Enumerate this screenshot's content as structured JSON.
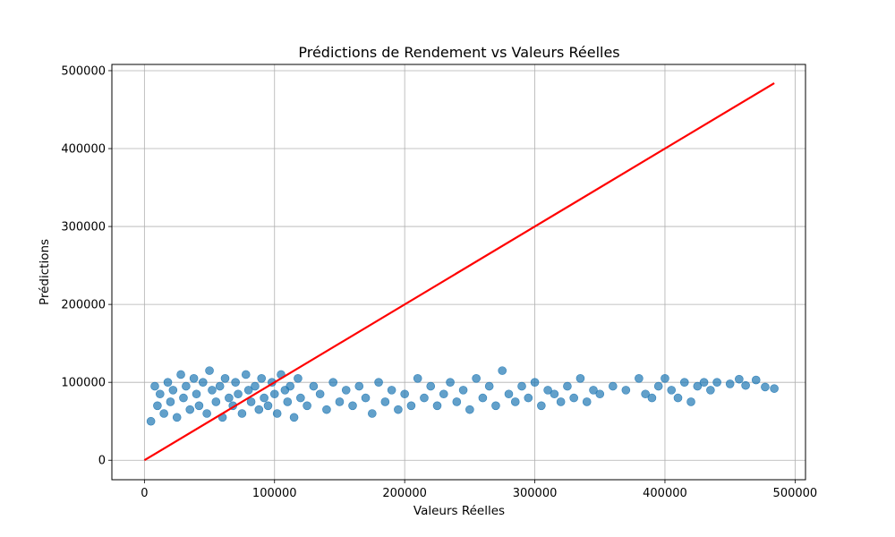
{
  "chart_data": {
    "type": "scatter",
    "title": "Prédictions de Rendement vs Valeurs Réelles",
    "xlabel": "Valeurs Réelles",
    "ylabel": "Prédictions",
    "xlim": [
      -25000,
      508000
    ],
    "ylim": [
      -25000,
      508000
    ],
    "x_ticks": [
      0,
      100000,
      200000,
      300000,
      400000,
      500000
    ],
    "y_ticks": [
      0,
      100000,
      200000,
      300000,
      400000,
      500000
    ],
    "x_tick_labels": [
      "0",
      "100000",
      "200000",
      "300000",
      "400000",
      "500000"
    ],
    "y_tick_labels": [
      "0",
      "100000",
      "200000",
      "300000",
      "400000",
      "500000"
    ],
    "grid": true,
    "series": [
      {
        "kind": "scatter",
        "color": "#1f77b4",
        "points": [
          [
            5000,
            50000
          ],
          [
            8000,
            95000
          ],
          [
            10000,
            70000
          ],
          [
            12000,
            85000
          ],
          [
            15000,
            60000
          ],
          [
            18000,
            100000
          ],
          [
            20000,
            75000
          ],
          [
            22000,
            90000
          ],
          [
            25000,
            55000
          ],
          [
            28000,
            110000
          ],
          [
            30000,
            80000
          ],
          [
            32000,
            95000
          ],
          [
            35000,
            65000
          ],
          [
            38000,
            105000
          ],
          [
            40000,
            85000
          ],
          [
            42000,
            70000
          ],
          [
            45000,
            100000
          ],
          [
            48000,
            60000
          ],
          [
            50000,
            115000
          ],
          [
            52000,
            90000
          ],
          [
            55000,
            75000
          ],
          [
            58000,
            95000
          ],
          [
            60000,
            55000
          ],
          [
            62000,
            105000
          ],
          [
            65000,
            80000
          ],
          [
            68000,
            70000
          ],
          [
            70000,
            100000
          ],
          [
            72000,
            85000
          ],
          [
            75000,
            60000
          ],
          [
            78000,
            110000
          ],
          [
            80000,
            90000
          ],
          [
            82000,
            75000
          ],
          [
            85000,
            95000
          ],
          [
            88000,
            65000
          ],
          [
            90000,
            105000
          ],
          [
            92000,
            80000
          ],
          [
            95000,
            70000
          ],
          [
            98000,
            100000
          ],
          [
            100000,
            85000
          ],
          [
            102000,
            60000
          ],
          [
            105000,
            110000
          ],
          [
            108000,
            90000
          ],
          [
            110000,
            75000
          ],
          [
            112000,
            95000
          ],
          [
            115000,
            55000
          ],
          [
            118000,
            105000
          ],
          [
            120000,
            80000
          ],
          [
            125000,
            70000
          ],
          [
            130000,
            95000
          ],
          [
            135000,
            85000
          ],
          [
            140000,
            65000
          ],
          [
            145000,
            100000
          ],
          [
            150000,
            75000
          ],
          [
            155000,
            90000
          ],
          [
            160000,
            70000
          ],
          [
            165000,
            95000
          ],
          [
            170000,
            80000
          ],
          [
            175000,
            60000
          ],
          [
            180000,
            100000
          ],
          [
            185000,
            75000
          ],
          [
            190000,
            90000
          ],
          [
            195000,
            65000
          ],
          [
            200000,
            85000
          ],
          [
            205000,
            70000
          ],
          [
            210000,
            105000
          ],
          [
            215000,
            80000
          ],
          [
            220000,
            95000
          ],
          [
            225000,
            70000
          ],
          [
            230000,
            85000
          ],
          [
            235000,
            100000
          ],
          [
            240000,
            75000
          ],
          [
            245000,
            90000
          ],
          [
            250000,
            65000
          ],
          [
            255000,
            105000
          ],
          [
            260000,
            80000
          ],
          [
            265000,
            95000
          ],
          [
            270000,
            70000
          ],
          [
            275000,
            115000
          ],
          [
            280000,
            85000
          ],
          [
            285000,
            75000
          ],
          [
            290000,
            95000
          ],
          [
            295000,
            80000
          ],
          [
            300000,
            100000
          ],
          [
            305000,
            70000
          ],
          [
            310000,
            90000
          ],
          [
            315000,
            85000
          ],
          [
            320000,
            75000
          ],
          [
            325000,
            95000
          ],
          [
            330000,
            80000
          ],
          [
            335000,
            105000
          ],
          [
            340000,
            75000
          ],
          [
            345000,
            90000
          ],
          [
            350000,
            85000
          ],
          [
            360000,
            95000
          ],
          [
            370000,
            90000
          ],
          [
            380000,
            105000
          ],
          [
            385000,
            85000
          ],
          [
            390000,
            80000
          ],
          [
            395000,
            95000
          ],
          [
            400000,
            105000
          ],
          [
            405000,
            90000
          ],
          [
            410000,
            80000
          ],
          [
            415000,
            100000
          ],
          [
            420000,
            75000
          ],
          [
            425000,
            95000
          ],
          [
            430000,
            100000
          ],
          [
            435000,
            90000
          ],
          [
            440000,
            100000
          ],
          [
            450000,
            98000
          ],
          [
            457000,
            104000
          ],
          [
            462000,
            96000
          ],
          [
            470000,
            103000
          ],
          [
            477000,
            94000
          ],
          [
            484000,
            92000
          ]
        ]
      },
      {
        "kind": "line",
        "color": "#ff0000",
        "x": [
          0,
          484000
        ],
        "y": [
          0,
          484000
        ]
      }
    ]
  }
}
